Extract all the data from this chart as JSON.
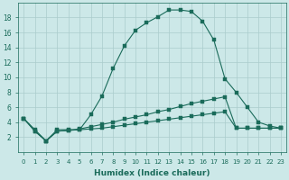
{
  "title": "",
  "xlabel": "Humidex (Indice chaleur)",
  "background_color": "#cce8e8",
  "line_color": "#1a6b5a",
  "grid_color": "#aacccc",
  "xlim": [
    -0.5,
    23.5
  ],
  "ylim": [
    0,
    20
  ],
  "xticks": [
    0,
    1,
    2,
    3,
    4,
    5,
    6,
    7,
    8,
    9,
    10,
    11,
    12,
    13,
    14,
    15,
    16,
    17,
    18,
    19,
    20,
    21,
    22,
    23
  ],
  "yticks": [
    2,
    4,
    6,
    8,
    10,
    12,
    14,
    16,
    18
  ],
  "line1_x": [
    0,
    1,
    2,
    3,
    4,
    5,
    6,
    7,
    8,
    9,
    10,
    11,
    12,
    13,
    14,
    15,
    16,
    17,
    18,
    19,
    20,
    21,
    22,
    23
  ],
  "line1_y": [
    4.5,
    3.0,
    1.5,
    3.0,
    3.0,
    3.0,
    5.0,
    7.5,
    11.2,
    14.2,
    16.3,
    17.3,
    18.1,
    19.0,
    19.0,
    18.8,
    17.5,
    15.0,
    9.8,
    8.0,
    6.0,
    4.0,
    3.5,
    3.2
  ],
  "line2_x": [
    0,
    1,
    2,
    3,
    4,
    5,
    6,
    7,
    8,
    9,
    10,
    11,
    12,
    13,
    14,
    15,
    16,
    17,
    18,
    19,
    20,
    21,
    22,
    23
  ],
  "line2_y": [
    4.5,
    2.8,
    1.5,
    2.8,
    2.9,
    3.1,
    3.4,
    3.7,
    4.0,
    4.4,
    4.7,
    5.0,
    5.4,
    5.7,
    6.1,
    6.5,
    6.8,
    7.1,
    7.4,
    3.2,
    3.2,
    3.2,
    3.2,
    3.2
  ],
  "line3_x": [
    0,
    1,
    2,
    3,
    4,
    5,
    6,
    7,
    8,
    9,
    10,
    11,
    12,
    13,
    14,
    15,
    16,
    17,
    18,
    19,
    20,
    21,
    22,
    23
  ],
  "line3_y": [
    4.5,
    2.8,
    1.5,
    2.8,
    2.9,
    3.0,
    3.1,
    3.2,
    3.4,
    3.6,
    3.8,
    4.0,
    4.2,
    4.4,
    4.6,
    4.8,
    5.0,
    5.2,
    5.4,
    3.2,
    3.2,
    3.2,
    3.2,
    3.2
  ],
  "xlabel_fontsize": 6.5,
  "tick_fontsize": 5.0,
  "marker_size": 2.5,
  "linewidth": 0.8
}
